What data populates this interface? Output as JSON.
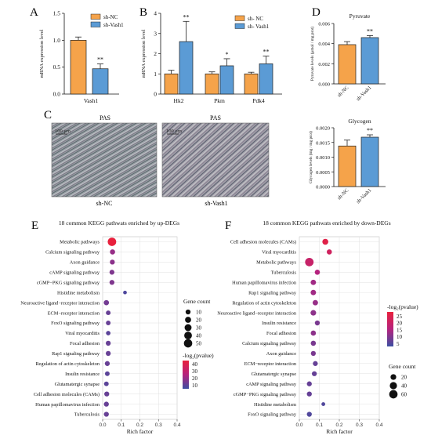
{
  "panel_labels": {
    "a": "A",
    "b": "B",
    "c": "C",
    "d": "D",
    "e": "E",
    "f": "F"
  },
  "colors": {
    "nc": "#f5a34a",
    "vash1": "#5b9bd5",
    "grad_high": "#e8213d",
    "grad_mid": "#b5237e",
    "grad_low": "#3d4fa2"
  },
  "pas": {
    "label1": "PAS",
    "label2": "PAS",
    "scale1": "100 μm",
    "scale2": "100 μm",
    "caption1": "sh-NC",
    "caption2": "sh-Vash1"
  },
  "chart_data": [
    {
      "id": "A",
      "type": "bar",
      "categories": [
        "Vash1"
      ],
      "series": [
        {
          "name": "sh-NC",
          "values": [
            1.0
          ],
          "error": [
            0.06
          ]
        },
        {
          "name": "sh-Vash1",
          "values": [
            0.47
          ],
          "error": [
            0.09
          ]
        }
      ],
      "significance": [
        "**"
      ],
      "ylabel": "mRNA expression level",
      "ylim": [
        0,
        1.5
      ],
      "yticks": [
        "0.0",
        "0.5",
        "1.0",
        "1.5"
      ],
      "legend": [
        "sh-NC",
        "sh-Vash1"
      ]
    },
    {
      "id": "B",
      "type": "bar",
      "categories": [
        "Hk2",
        "Pkm",
        "Pdk4"
      ],
      "series": [
        {
          "name": "sh- NC",
          "values": [
            1.0,
            1.0,
            1.0
          ],
          "error": [
            0.18,
            0.1,
            0.08
          ]
        },
        {
          "name": "sh- Vash1",
          "values": [
            2.6,
            1.4,
            1.5
          ],
          "error": [
            1.0,
            0.35,
            0.38
          ]
        }
      ],
      "significance": [
        "**",
        "*",
        "**"
      ],
      "ylabel": "mRNA expression level",
      "ylim": [
        0,
        4
      ],
      "yticks": [
        "0",
        "1",
        "2",
        "3",
        "4"
      ],
      "legend": [
        "sh- NC",
        "sh- Vash1"
      ]
    },
    {
      "id": "D1",
      "type": "bar",
      "title": "Pyruvate",
      "categories": [
        "sh-NC",
        "sh-Vash1"
      ],
      "values": [
        0.0039,
        0.0046
      ],
      "error": [
        0.0003,
        0.0002
      ],
      "significance": [
        "",
        "**"
      ],
      "ylabel": "Pyruvate levels (μmol / mg prot)",
      "ylim": [
        0,
        0.006
      ],
      "yticks": [
        "0.000",
        "0.002",
        "0.004",
        "0.006"
      ]
    },
    {
      "id": "D2",
      "type": "bar",
      "title": "Glycogen",
      "categories": [
        "sh-NC",
        "sh-Vash1"
      ],
      "values": [
        0.00138,
        0.00168
      ],
      "error": [
        0.0002,
        8e-05
      ],
      "significance": [
        "",
        "**"
      ],
      "ylabel": "Glycogen levels (mg / mg prot)",
      "ylim": [
        0,
        0.002
      ],
      "yticks": [
        "0.0000",
        "0.0005",
        "0.0010",
        "0.0015",
        "0.0020"
      ]
    },
    {
      "id": "E",
      "type": "scatter",
      "title": "18 common KEGG pathwats enriched by up-DEGs",
      "xlabel": "Rich factor",
      "xlim": [
        0,
        0.4
      ],
      "xticks": [
        "0.0",
        "0.1",
        "0.2",
        "0.3",
        "0.4"
      ],
      "categories": [
        "Metabolic pathways",
        "Calcium signaling pathway",
        "Axon guidance",
        "cAMP signaling pathway",
        "cGMP−PKG signaling pathway",
        "Histidine metabolism",
        "Neuroactive ligand−receptor interaction",
        "ECM−receptor interaction",
        "FoxO signaling pathway",
        "Viral myocarditis",
        "Focal adhesion",
        "Rap1 signaling pathway",
        "Regulation of actin cytoskeleton",
        "Insulin resistance",
        "Glutamatergic synapse",
        "Cell adhesion molecules (CAMs)",
        "Human papillomavirus infection",
        "Tuberculosis"
      ],
      "x": [
        0.05,
        0.053,
        0.052,
        0.05,
        0.05,
        0.12,
        0.02,
        0.03,
        0.03,
        0.03,
        0.03,
        0.03,
        0.025,
        0.025,
        0.02,
        0.022,
        0.02,
        0.02
      ],
      "count": [
        52,
        12,
        10,
        10,
        10,
        3,
        12,
        8,
        8,
        7,
        10,
        10,
        10,
        8,
        8,
        10,
        10,
        10
      ],
      "logp": [
        45,
        20,
        18,
        16,
        16,
        8,
        14,
        12,
        12,
        10,
        12,
        12,
        12,
        10,
        10,
        12,
        12,
        12
      ],
      "legend_size_title": "Gene count",
      "size_levels": [
        "10",
        "20",
        "30",
        "40",
        "50"
      ],
      "legend_color_title": "-log₂(pvalue)",
      "color_levels": [
        "40",
        "30",
        "20",
        "10"
      ]
    },
    {
      "id": "F",
      "type": "scatter",
      "title": "18 common KEGG pathwats enriched by down-DEGs",
      "xlabel": "Rich factor",
      "xlim": [
        0,
        0.4
      ],
      "xticks": [
        "0.0",
        "0.1",
        "0.2",
        "0.3",
        "0.4"
      ],
      "categories": [
        "Cell adhesion molecules (CAMs)",
        "Viral myocarditis",
        "Metabolic pathways",
        "Tuberculosis",
        "Human papillomavirus infection",
        "Rap1 signaling pathway",
        "Regulation of actin cytoskeleton",
        "Neuroactive ligand−receptor interaction",
        "Insulin resistance",
        "Focal adhesion",
        "Calcium signaling pathway",
        "Axon guidance",
        "ECM−receptor interaction",
        "Glutamatergic synapse",
        "cAMP signaling pathway",
        "cGMP−PKG signaling pathway",
        "Histidine metabolism",
        "FoxO signaling pathway"
      ],
      "x": [
        0.13,
        0.15,
        0.05,
        0.09,
        0.07,
        0.07,
        0.08,
        0.07,
        0.09,
        0.07,
        0.07,
        0.07,
        0.08,
        0.075,
        0.05,
        0.05,
        0.12,
        0.05
      ],
      "count": [
        22,
        14,
        62,
        14,
        16,
        16,
        16,
        18,
        12,
        14,
        14,
        12,
        12,
        12,
        12,
        12,
        4,
        12
      ],
      "logp": [
        26,
        22,
        20,
        16,
        14,
        14,
        13,
        12,
        10,
        12,
        10,
        10,
        8,
        8,
        8,
        8,
        6,
        6
      ],
      "legend_size_title": "Gene count",
      "size_levels": [
        "20",
        "40",
        "60"
      ],
      "legend_color_title": "-log₂(pvalue)",
      "color_levels": [
        "25",
        "20",
        "15",
        "10",
        "5"
      ]
    }
  ]
}
